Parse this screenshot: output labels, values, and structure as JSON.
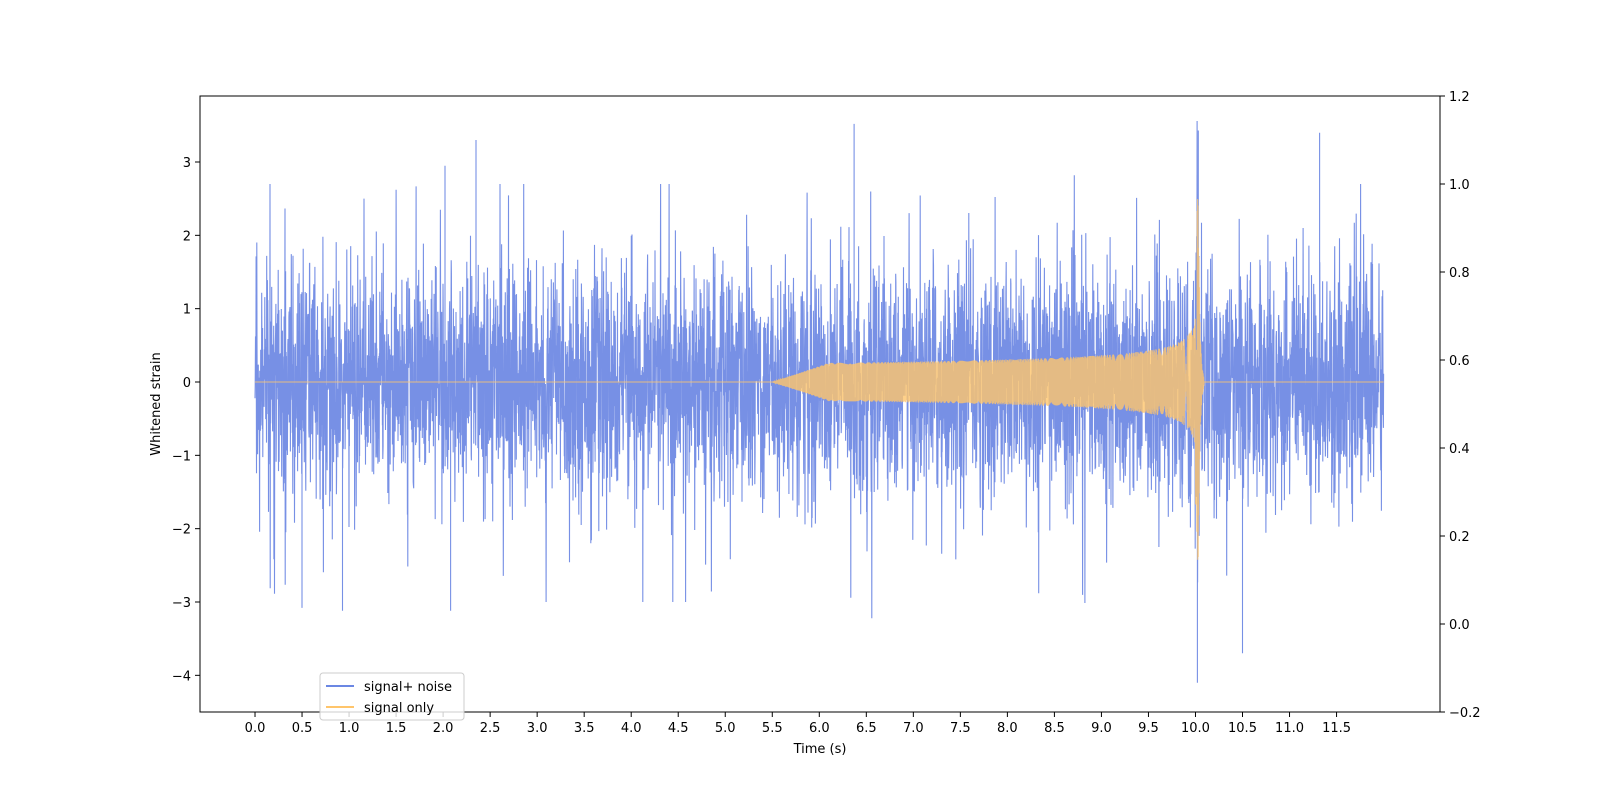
{
  "chart_data": {
    "type": "line",
    "title": "",
    "xlabel": "Time (s)",
    "ylabel": "Whitened strain",
    "xlim": [
      -0.585,
      12.6
    ],
    "ylim": [
      -4.5,
      3.9
    ],
    "y2lim": [
      -0.2,
      1.2
    ],
    "x_ticks": [
      0.0,
      0.5,
      1.0,
      1.5,
      2.0,
      2.5,
      3.0,
      3.5,
      4.0,
      4.5,
      5.0,
      5.5,
      6.0,
      6.5,
      7.0,
      7.5,
      8.0,
      8.5,
      9.0,
      9.5,
      10.0,
      10.5,
      11.0,
      11.5
    ],
    "x_tick_labels": [
      "0.0",
      "0.5",
      "1.0",
      "1.5",
      "2.0",
      "2.5",
      "3.0",
      "3.5",
      "4.0",
      "4.5",
      "5.0",
      "5.5",
      "6.0",
      "6.5",
      "7.0",
      "7.5",
      "8.0",
      "8.5",
      "9.0",
      "9.5",
      "10.0",
      "10.5",
      "11.0",
      "11.5"
    ],
    "y_ticks": [
      3,
      2,
      1,
      0,
      -1,
      -2,
      -3,
      -4
    ],
    "y_tick_labels": [
      "3",
      "2",
      "1",
      "0",
      "−1",
      "−2",
      "−3",
      "−4"
    ],
    "y2_ticks": [
      1.2,
      1.0,
      0.8,
      0.6,
      0.4,
      0.2,
      0.0,
      -0.2
    ],
    "y2_tick_labels": [
      "1.2",
      "1.0",
      "0.8",
      "0.6",
      "0.4",
      "0.2",
      "0.0",
      "−0.2"
    ],
    "legend_placement": "lower-left",
    "grid": false,
    "series": [
      {
        "name": "signal+ noise",
        "color": "#6b87e3",
        "x_range": [
          0.0,
          12.0
        ],
        "typical_range": [
          -1.6,
          1.6
        ],
        "peaks": [
          [
            0.5,
            -3.08
          ],
          [
            0.93,
            -3.12
          ],
          [
            2.02,
            2.95
          ],
          [
            2.08,
            -3.12
          ],
          [
            2.35,
            3.3
          ],
          [
            6.37,
            3.52
          ],
          [
            10.03,
            3.43
          ],
          [
            10.02,
            -4.1
          ],
          [
            11.32,
            3.4
          ],
          [
            10.5,
            -3.7
          ]
        ]
      },
      {
        "name": "signal only",
        "color": "#ffc56b",
        "x_range": [
          0.0,
          12.0
        ],
        "merger_time": 10.03,
        "peak_amplitude": 2.85
      }
    ]
  }
}
